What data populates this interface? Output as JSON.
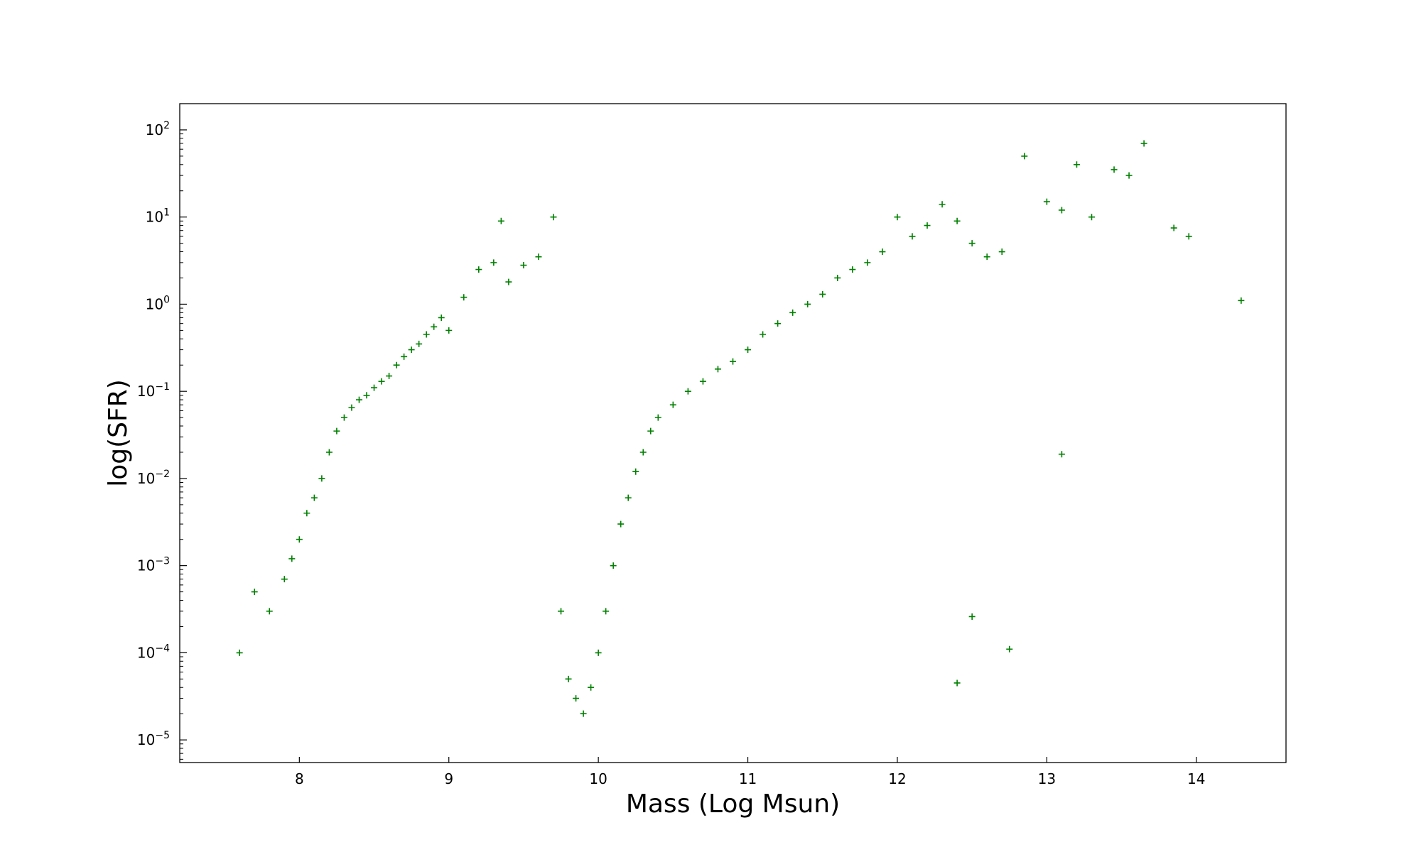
{
  "chart_data": {
    "type": "scatter",
    "title": "",
    "xlabel": "Mass (Log Msun)",
    "ylabel": "log(SFR)",
    "x_scale": "linear",
    "y_scale": "log",
    "xlim": [
      7.2,
      14.6
    ],
    "ylim": [
      5.5e-06,
      200
    ],
    "x_ticks": [
      8,
      9,
      10,
      11,
      12,
      13,
      14
    ],
    "x_tick_labels": [
      "8",
      "9",
      "10",
      "11",
      "12",
      "13",
      "14"
    ],
    "y_ticks": [
      1e-05,
      0.0001,
      0.001,
      0.01,
      0.1,
      1,
      10,
      100
    ],
    "y_tick_labels": [
      {
        "base": "10",
        "exp": "−5"
      },
      {
        "base": "10",
        "exp": "−4"
      },
      {
        "base": "10",
        "exp": "−3"
      },
      {
        "base": "10",
        "exp": "−2"
      },
      {
        "base": "10",
        "exp": "−1"
      },
      {
        "base": "10",
        "exp": "0"
      },
      {
        "base": "10",
        "exp": "1"
      },
      {
        "base": "10",
        "exp": "2"
      }
    ],
    "marker": "+",
    "color": "#008000",
    "grid": false,
    "legend": "none",
    "series": [
      {
        "x": [
          7.6,
          7.7,
          7.8,
          7.9,
          7.95,
          8.0,
          8.05,
          8.1,
          8.15,
          8.2,
          8.25,
          8.3,
          8.35,
          8.4,
          8.45,
          8.5,
          8.55,
          8.6,
          8.65,
          8.7,
          8.75,
          8.8,
          8.85,
          8.9,
          8.95,
          9.0,
          9.1,
          9.2,
          9.3,
          9.35,
          9.4,
          9.5,
          9.6,
          9.7,
          9.75,
          9.8,
          9.85,
          9.9,
          9.95,
          10.0,
          10.05,
          10.1,
          10.15,
          10.2,
          10.25,
          10.3,
          10.35,
          10.4,
          10.5,
          10.6,
          10.7,
          10.8,
          10.9,
          11.0,
          11.1,
          11.2,
          11.3,
          11.4,
          11.5,
          11.6,
          11.7,
          11.8,
          11.9,
          12.0,
          12.1,
          12.2,
          12.3,
          12.4,
          12.5,
          12.6,
          12.7,
          12.85,
          13.0,
          13.1,
          13.2,
          13.3,
          13.45,
          13.55,
          13.65,
          13.85,
          13.95,
          14.3,
          12.75,
          12.4,
          13.1,
          12.5
        ],
        "y": [
          0.0001,
          0.0005,
          0.0003,
          0.0007,
          0.0012,
          0.002,
          0.004,
          0.006,
          0.01,
          0.02,
          0.035,
          0.05,
          0.065,
          0.08,
          0.09,
          0.11,
          0.13,
          0.15,
          0.2,
          0.25,
          0.3,
          0.35,
          0.45,
          0.55,
          0.7,
          0.5,
          1.2,
          2.5,
          3.0,
          9.0,
          1.8,
          2.8,
          3.5,
          10.0,
          0.0003,
          5e-05,
          3e-05,
          2e-05,
          4e-05,
          0.0001,
          0.0003,
          0.001,
          0.003,
          0.006,
          0.012,
          0.02,
          0.035,
          0.05,
          0.07,
          0.1,
          0.13,
          0.18,
          0.22,
          0.3,
          0.45,
          0.6,
          0.8,
          1.0,
          1.3,
          2.0,
          2.5,
          3.0,
          4.0,
          10.0,
          6.0,
          8.0,
          14.0,
          9.0,
          5.0,
          3.5,
          4.0,
          50.0,
          15.0,
          12.0,
          40.0,
          10.0,
          35.0,
          30.0,
          70.0,
          7.5,
          6.0,
          1.1,
          0.00011,
          4.5e-05,
          0.019,
          0.00026
        ],
        "n_synthetic": 0
      }
    ]
  }
}
